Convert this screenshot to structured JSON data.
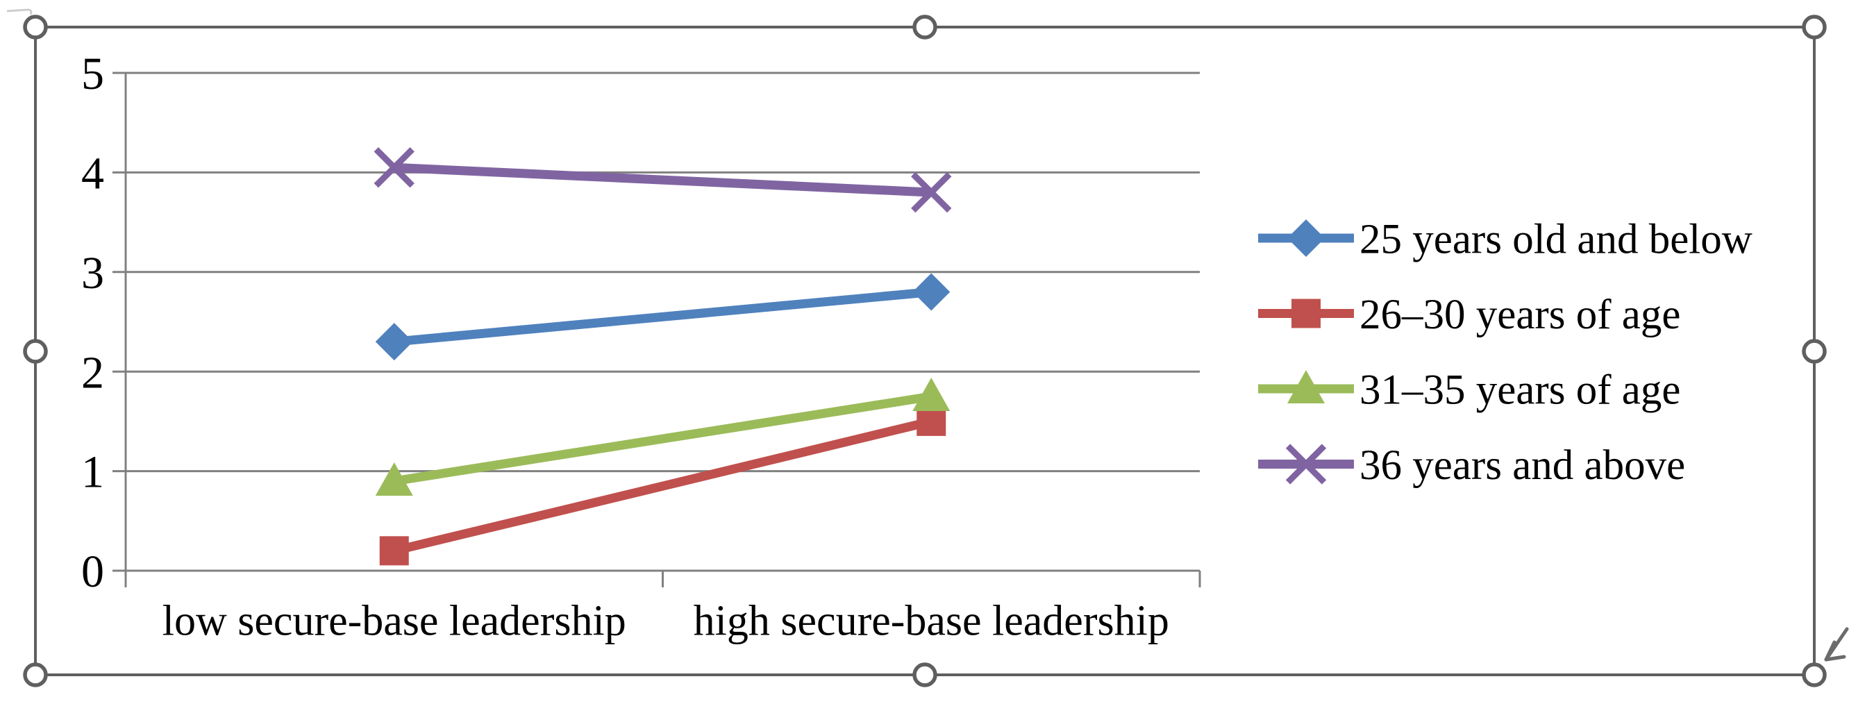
{
  "chart_object": {
    "selected": true,
    "selection": {
      "border_color": "#5f5f5f",
      "handle_fill": "#ffffff",
      "handle_positions": [
        "top-left",
        "top-center",
        "top-right",
        "middle-left",
        "middle-right",
        "bottom-left",
        "bottom-center",
        "bottom-right"
      ]
    },
    "cursor": "resize-arrow"
  },
  "chart_data": {
    "type": "line",
    "title": "",
    "xlabel": "",
    "ylabel": "",
    "categories": [
      "low secure-base leadership",
      "high secure-base leadership"
    ],
    "series": [
      {
        "name": "25 years old and below",
        "values": [
          2.3,
          2.8
        ],
        "color": "#4F81BD",
        "marker": "diamond"
      },
      {
        "name": "26–30 years of age",
        "values": [
          0.2,
          1.5
        ],
        "color": "#C0504D",
        "marker": "square"
      },
      {
        "name": "31–35 years of age",
        "values": [
          0.9,
          1.75
        ],
        "color": "#9BBB59",
        "marker": "triangle"
      },
      {
        "name": "36 years and above",
        "values": [
          4.05,
          3.8
        ],
        "color": "#8064A2",
        "marker": "x"
      }
    ],
    "ylim": [
      0,
      5
    ],
    "yticks": [
      0,
      1,
      2,
      3,
      4,
      5
    ],
    "grid": true,
    "legend_position": "right",
    "gridline_color": "#808080",
    "axis_color": "#808080",
    "text_color": "#000000"
  }
}
